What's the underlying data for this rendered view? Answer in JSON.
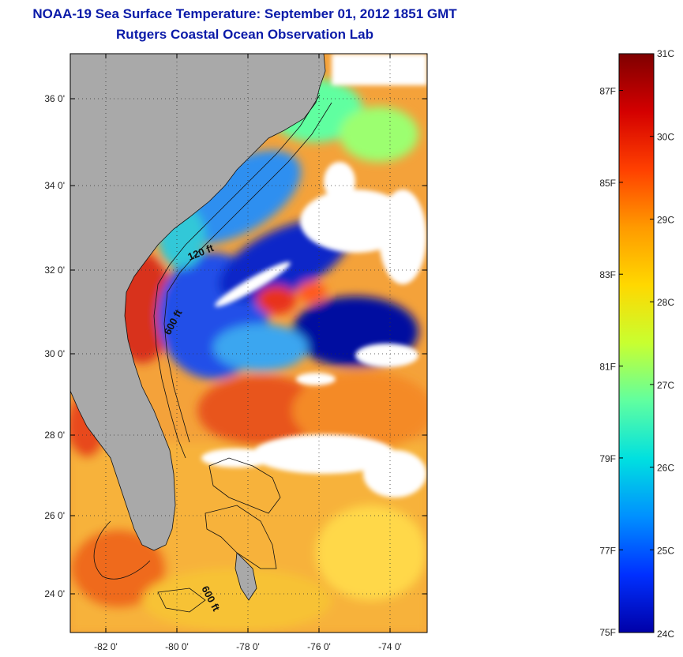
{
  "title": {
    "line1": "NOAA-19 Sea Surface Temperature:  September 01, 2012 1851 GMT",
    "line2": "Rutgers Coastal Ocean Observation Lab"
  },
  "map": {
    "lat_labels": [
      "36 0'",
      "34 0'",
      "32 0'",
      "30 0'",
      "28 0'",
      "26 0'",
      "24 0'"
    ],
    "lon_labels": [
      "-82 0'",
      "-80 0'",
      "-78 0'",
      "-76 0'",
      "-74 0'"
    ],
    "contour_labels": [
      "120 ft",
      "600 ft",
      "600 ft"
    ],
    "colors": {
      "land": "#a9a9a9",
      "cloud": "#ffffff",
      "grid": "#444444"
    }
  },
  "colorbar": {
    "celsius_labels": [
      "31C",
      "30C",
      "29C",
      "28C",
      "27C",
      "26C",
      "25C",
      "24C"
    ],
    "fahrenheit_labels": [
      "87F",
      "85F",
      "83F",
      "81F",
      "79F",
      "77F",
      "75F"
    ],
    "gradient_colors": [
      "#7f0000",
      "#d40000",
      "#ff4000",
      "#ff9a00",
      "#ffd800",
      "#c8ff30",
      "#60ffa0",
      "#00e0e0",
      "#0090ff",
      "#0030ff",
      "#0000a8"
    ]
  }
}
